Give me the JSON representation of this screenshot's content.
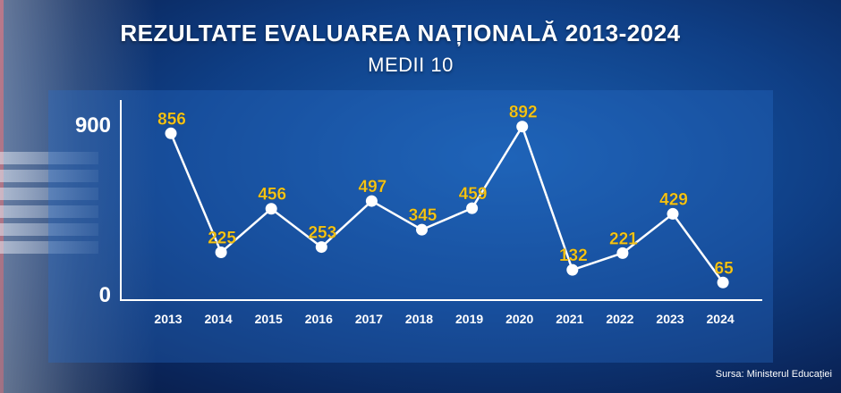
{
  "header": {
    "title": "REZULTATE EVALUAREA NAȚIONALĂ 2013-2024",
    "subtitle": "MEDII 10"
  },
  "source": "Sursa: Ministerul Educației",
  "colors": {
    "line": "#ffffff",
    "labels": "#f5c518",
    "axis": "#ffffff"
  },
  "chart_data": {
    "type": "line",
    "title": "REZULTATE EVALUAREA NAȚIONALĂ 2013-2024",
    "subtitle": "MEDII 10",
    "categories": [
      "2013",
      "2014",
      "2015",
      "2016",
      "2017",
      "2018",
      "2019",
      "2020",
      "2021",
      "2022",
      "2023",
      "2024"
    ],
    "series": [
      {
        "values": [
          856,
          225,
          456,
          253,
          497,
          345,
          459,
          892,
          132,
          221,
          429,
          65
        ]
      }
    ],
    "data_labels": [
      "856",
      "225",
      "456",
      "253",
      "497",
      "345",
      "459",
      "892",
      "132",
      "221",
      "429",
      "65"
    ],
    "y_ticks": [
      "0",
      "900"
    ],
    "ylim": [
      0,
      950
    ],
    "grid": false,
    "legend": "none"
  }
}
